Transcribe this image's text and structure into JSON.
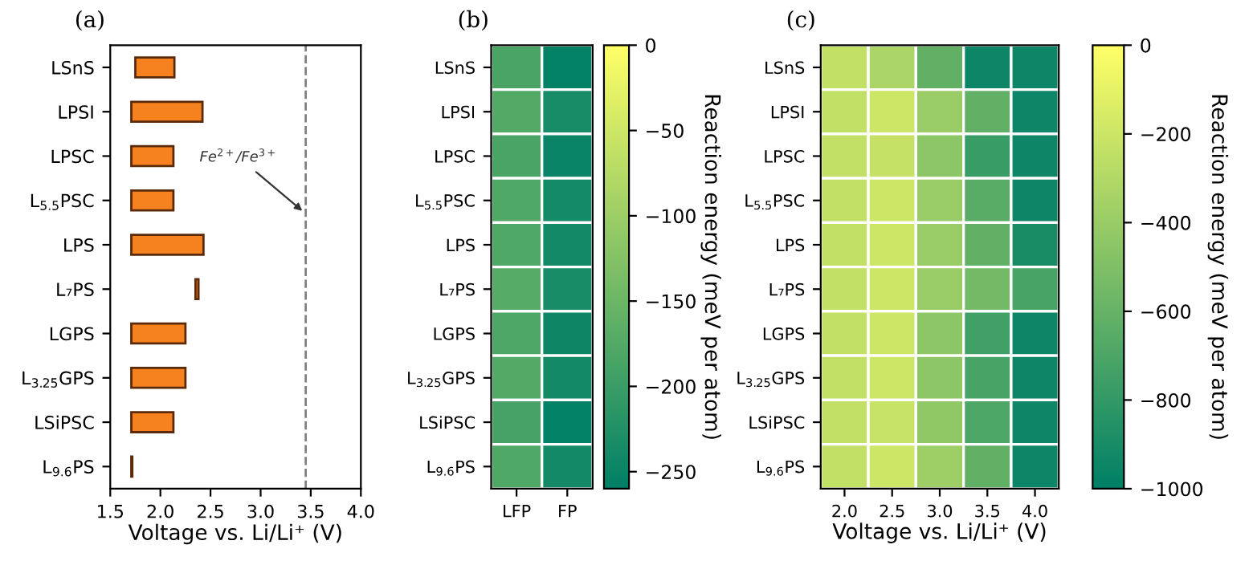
{
  "chart_data": [
    {
      "type": "bar",
      "title": "(a)",
      "orientation": "horizontal",
      "xlabel": "Voltage vs. Li/Li⁺ (V)",
      "categories": [
        "LSnS",
        "LPSI",
        "LPSC",
        "L$_{5.5}$PSC",
        "LPS",
        "L₇PS",
        "LGPS",
        "L$_{3.25}$GPS",
        "LSiPSC",
        "L$_{9.6}$PS"
      ],
      "base": [
        1.75,
        1.71,
        1.71,
        1.71,
        1.71,
        2.35,
        1.71,
        1.71,
        1.71,
        1.71
      ],
      "values": [
        0.39,
        0.71,
        0.42,
        0.42,
        0.72,
        0.03,
        0.54,
        0.54,
        0.42,
        0.01
      ],
      "color": "#f5821f",
      "xlim": [
        1.5,
        4.0
      ],
      "xticks": [
        1.5,
        {
          "value": 2,
          "label": "2.0"
        },
        2.5,
        {
          "value": 3,
          "label": "3.0"
        },
        3.5,
        {
          "value": 4,
          "label": "4.0"
        }
      ],
      "ref_lines": [
        {
          "axis": "x",
          "value": 3.45,
          "label": "Fe$^{2+}$/Fe$^{3+}$",
          "color": "#808080",
          "line_style": "dashed"
        }
      ]
    },
    {
      "type": "heatmap",
      "title": "(b)",
      "clabel": "Reaction energy (meV per atom)",
      "categories": [
        "LFP",
        "FP"
      ],
      "y_categories": [
        "LSnS",
        "LPSI",
        "LPSC",
        "L$_{5.5}$PSC",
        "LPS",
        "L₇PS",
        "LGPS",
        "L$_{3.25}$GPS",
        "LSiPSC",
        "L$_{9.6}$PS"
      ],
      "cells": [
        [
          -185,
          -255
        ],
        [
          -175,
          -235
        ],
        [
          -185,
          -250
        ],
        [
          -178,
          -238
        ],
        [
          -178,
          -240
        ],
        [
          -172,
          -235
        ],
        [
          -180,
          -245
        ],
        [
          -175,
          -240
        ],
        [
          -188,
          -255
        ],
        [
          -178,
          -240
        ]
      ],
      "clim": [
        -260,
        0
      ],
      "cticks": [
        0,
        -50,
        -100,
        -150,
        -200,
        -250
      ]
    },
    {
      "type": "heatmap",
      "title": "(c)",
      "clabel": "Reaction energy (meV per atom)",
      "xlabel": "Voltage vs. Li/Li⁺ (V)",
      "categories": [
        "2.0",
        "2.5",
        "3.0",
        "3.5",
        "4.0"
      ],
      "y_categories": [
        "LSnS",
        "LPSI",
        "LPSC",
        "L$_{5.5}$PSC",
        "LPS",
        "L₇PS",
        "LGPS",
        "L$_{3.25}$GPS",
        "LSiPSC",
        "L$_{9.6}$PS"
      ],
      "cells": [
        [
          -240,
          -330,
          -620,
          -950,
          -950
        ],
        [
          -240,
          -200,
          -400,
          -620,
          -950
        ],
        [
          -240,
          -230,
          -450,
          -780,
          -950
        ],
        [
          -240,
          -200,
          -400,
          -650,
          -950
        ],
        [
          -240,
          -200,
          -400,
          -620,
          -900
        ],
        [
          -240,
          -200,
          -400,
          -550,
          -720
        ],
        [
          -240,
          -200,
          -450,
          -750,
          -950
        ],
        [
          -240,
          -200,
          -450,
          -720,
          -950
        ],
        [
          -240,
          -220,
          -430,
          -700,
          -950
        ],
        [
          -240,
          -200,
          -380,
          -620,
          -950
        ]
      ],
      "clim": [
        -1000,
        0
      ],
      "cticks": [
        0,
        -200,
        -400,
        -600,
        -800,
        -1000
      ]
    }
  ]
}
